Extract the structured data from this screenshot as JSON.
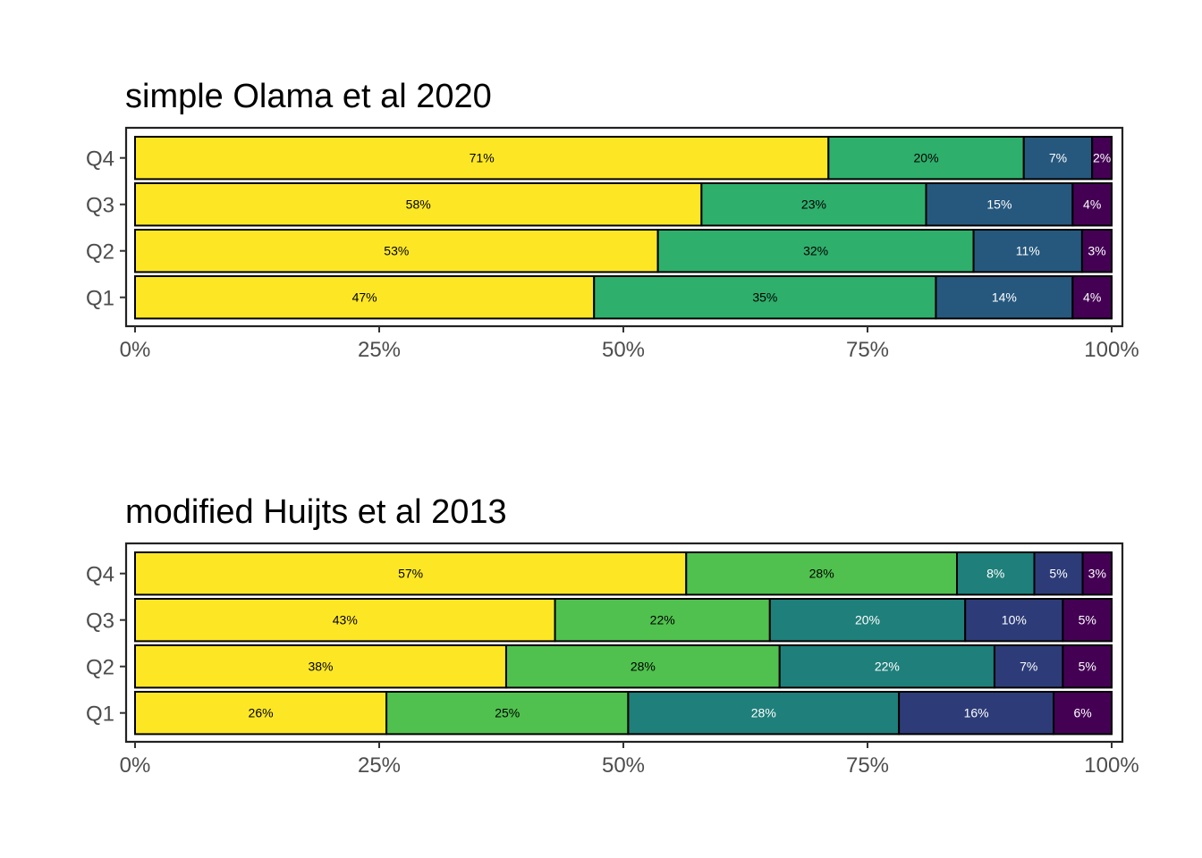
{
  "chart_data": [
    {
      "type": "bar",
      "orientation": "horizontal",
      "stacked": true,
      "normalized": true,
      "title": "simple Olama et al 2020",
      "categories": [
        "Q1",
        "Q2",
        "Q3",
        "Q4"
      ],
      "series": [
        {
          "color": "#FDE725",
          "label_color": "#000000",
          "values": [
            47,
            53,
            58,
            71
          ]
        },
        {
          "color": "#2FAF6C",
          "label_color": "#000000",
          "values": [
            35,
            32,
            23,
            20
          ]
        },
        {
          "color": "#26587E",
          "label_color": "#ffffff",
          "values": [
            14,
            11,
            15,
            7
          ]
        },
        {
          "color": "#440154",
          "label_color": "#ffffff",
          "values": [
            4,
            3,
            4,
            2
          ]
        }
      ],
      "x_ticks": [
        "0%",
        "25%",
        "50%",
        "75%",
        "100%"
      ],
      "xlim": [
        0,
        100
      ],
      "grid": false,
      "legend": "none"
    },
    {
      "type": "bar",
      "orientation": "horizontal",
      "stacked": true,
      "normalized": true,
      "title": "modified Huijts et al 2013",
      "categories": [
        "Q1",
        "Q2",
        "Q3",
        "Q4"
      ],
      "series": [
        {
          "color": "#FDE725",
          "label_color": "#000000",
          "values": [
            26,
            38,
            43,
            57
          ]
        },
        {
          "color": "#50C14E",
          "label_color": "#000000",
          "values": [
            25,
            28,
            22,
            28
          ]
        },
        {
          "color": "#1F7F7A",
          "label_color": "#ffffff",
          "values": [
            28,
            22,
            20,
            8
          ]
        },
        {
          "color": "#2D3C78",
          "label_color": "#ffffff",
          "values": [
            16,
            7,
            10,
            5
          ]
        },
        {
          "color": "#440154",
          "label_color": "#ffffff",
          "values": [
            6,
            5,
            5,
            3
          ]
        }
      ],
      "x_ticks": [
        "0%",
        "25%",
        "50%",
        "75%",
        "100%"
      ],
      "xlim": [
        0,
        100
      ],
      "grid": false,
      "legend": "none"
    }
  ]
}
